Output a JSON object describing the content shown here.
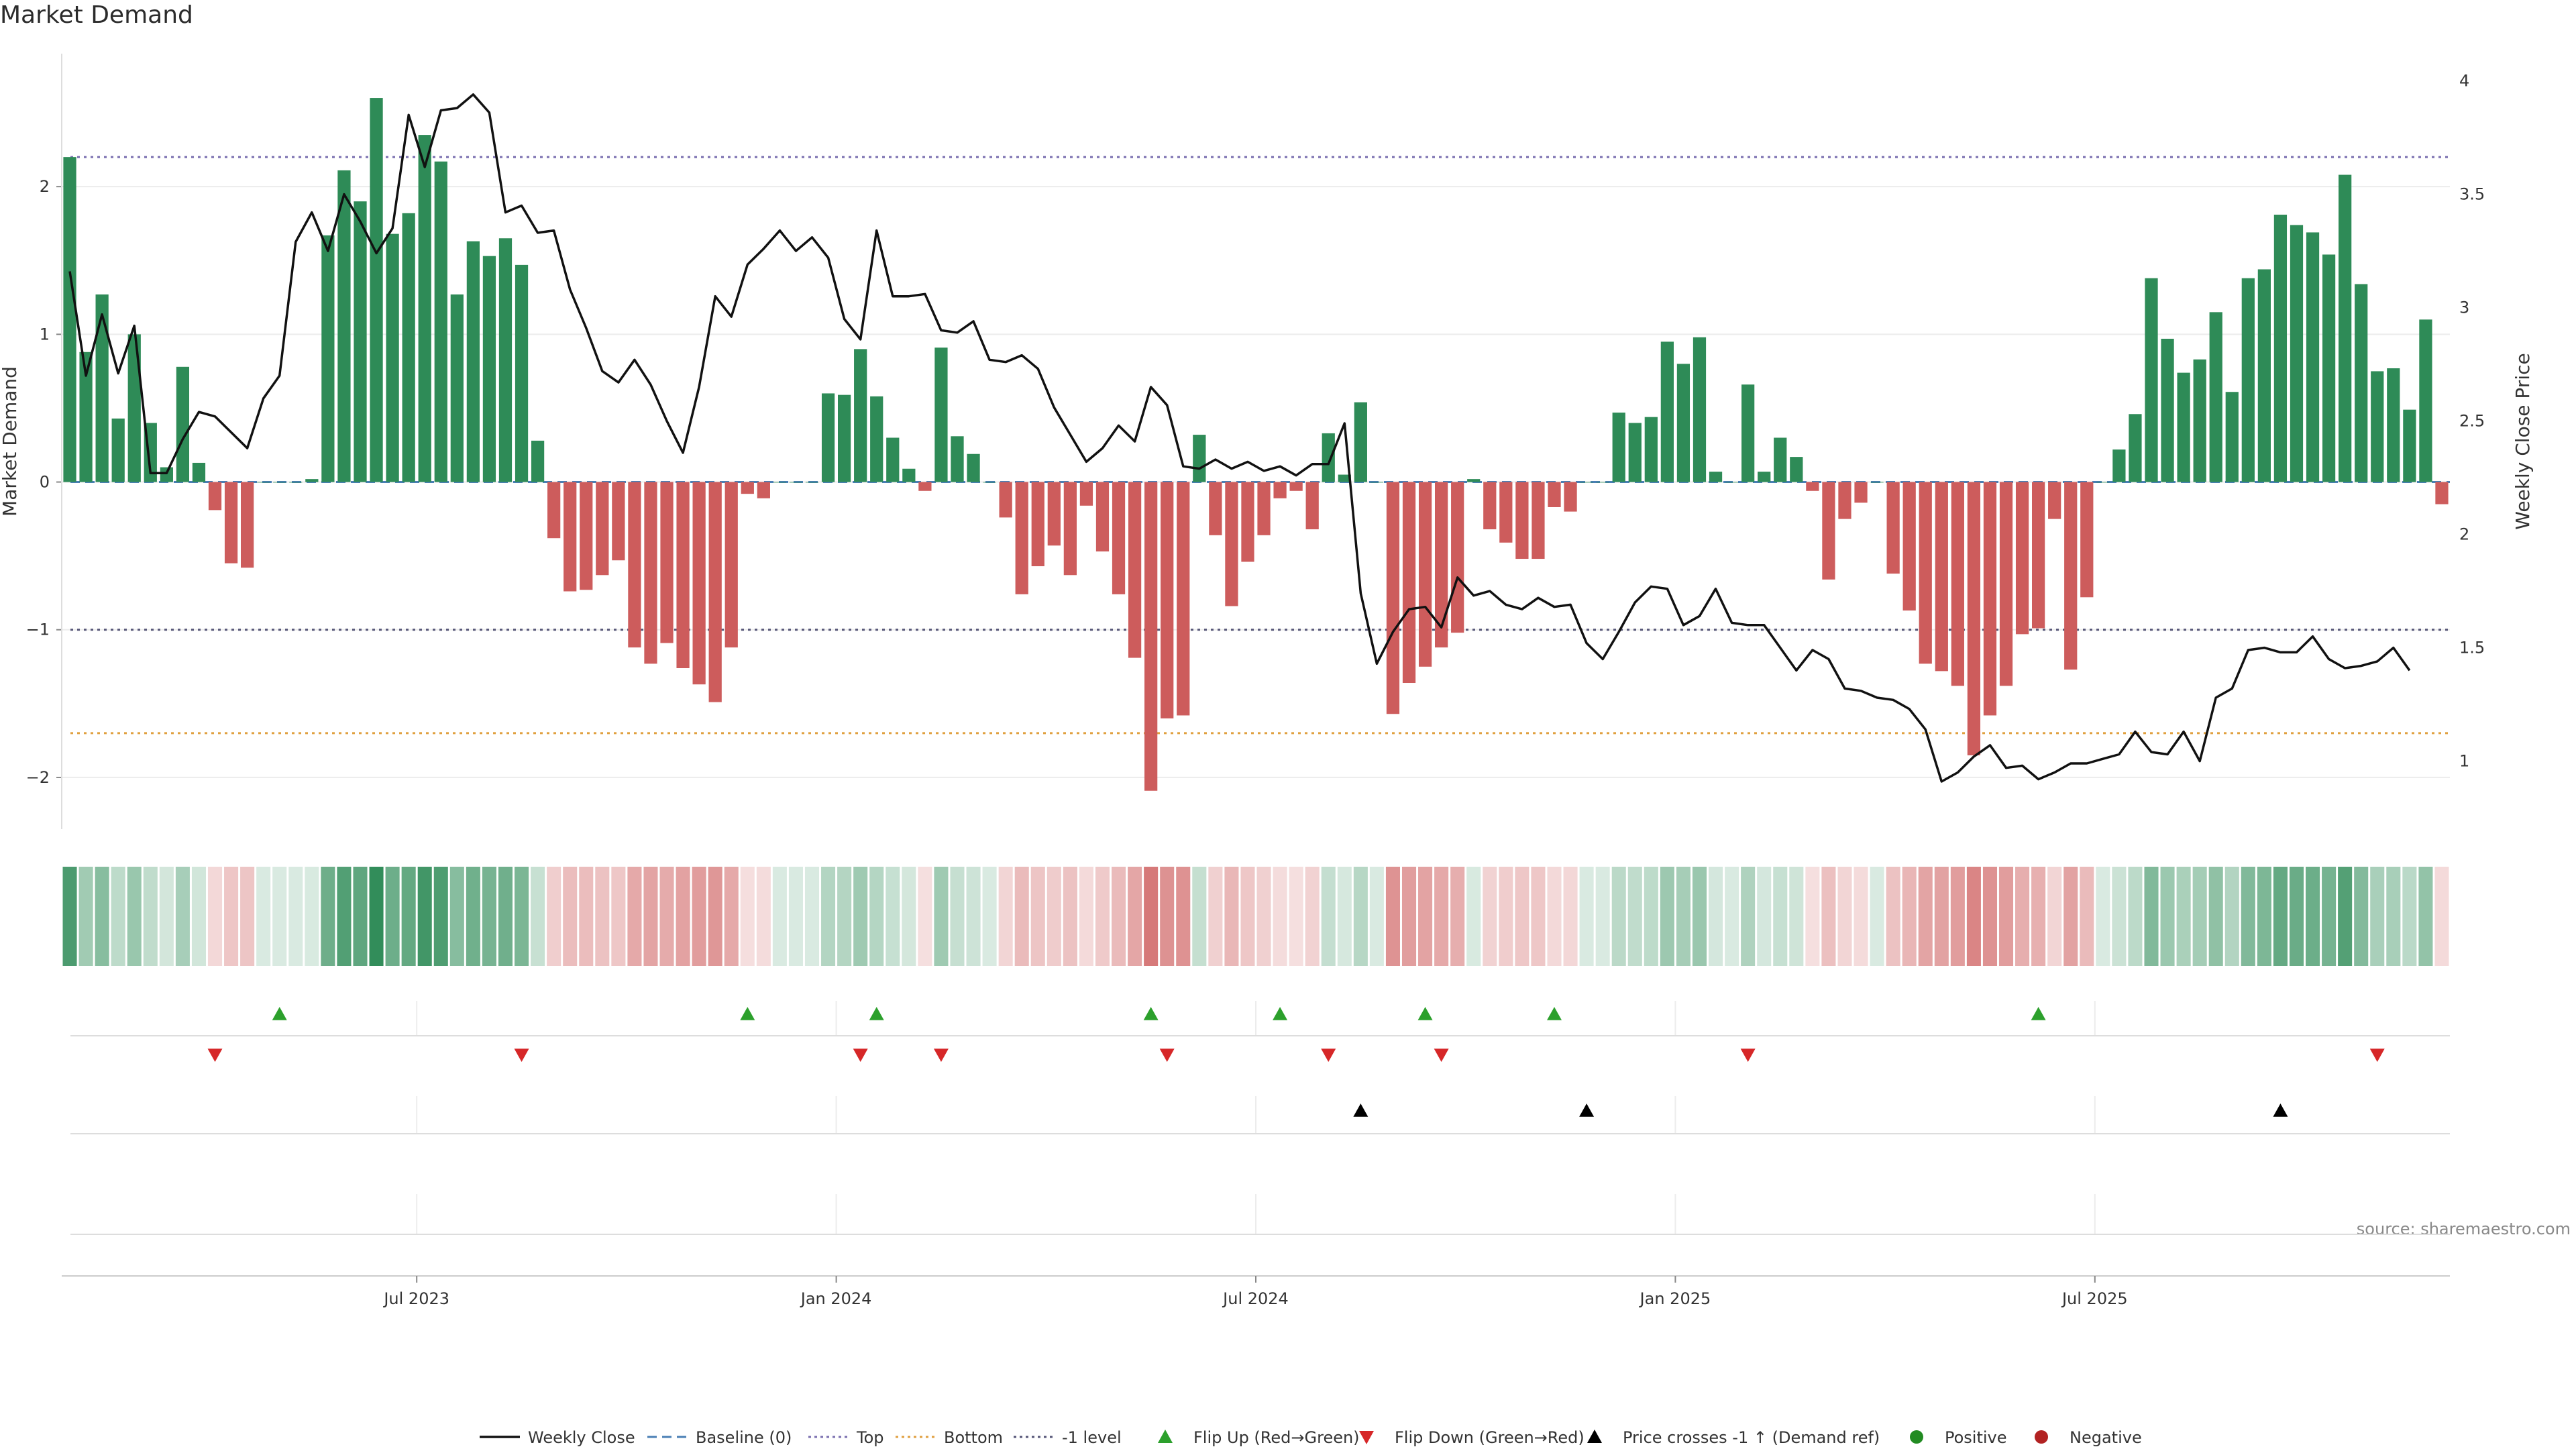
{
  "chart_data": {
    "type": "bar",
    "title": "Market Demand",
    "ylabel": "Market Demand",
    "y2label": "Weekly Close Price",
    "source": "source: sharemaestro.com",
    "ylim": [
      -2.35,
      2.9
    ],
    "y2lim": [
      0.7,
      4.12
    ],
    "yticks": [
      -2,
      -1,
      0,
      1,
      2
    ],
    "yticklabels": [
      "−2",
      "−1",
      "0",
      "1",
      "2"
    ],
    "y2ticks": [
      1,
      1.5,
      2,
      2.5,
      3,
      3.5,
      4
    ],
    "y2ticklabels": [
      "1",
      "1.5",
      "2",
      "2.5",
      "3",
      "3.5",
      "4"
    ],
    "xticks": [
      {
        "index": 22,
        "label": "Jul 2023"
      },
      {
        "index": 48,
        "label": "Jan 2024"
      },
      {
        "index": 74,
        "label": "Jul 2024"
      },
      {
        "index": 100,
        "label": "Jan 2025"
      },
      {
        "index": 126,
        "label": "Jul 2025"
      }
    ],
    "reference_lines": {
      "top": 2.2,
      "bottom": -1.7,
      "minus_one": -1.0
    },
    "colors": {
      "positive": "#2e8b57",
      "negative": "#cd5c5c",
      "price": "#111111",
      "top": "#7a6fb0",
      "bottom": "#e0a040",
      "minus_one": "#555577",
      "baseline": "#4a7fb5",
      "flip_up": "#2ca02c",
      "flip_down": "#d62728",
      "cross": "#000000"
    },
    "series": [
      {
        "name": "Market Demand",
        "values": [
          2.2,
          0.88,
          1.27,
          0.43,
          1.0,
          0.4,
          0.1,
          0.78,
          0.13,
          -0.19,
          -0.55,
          -0.58,
          0,
          0,
          0,
          0.02,
          1.67,
          2.11,
          1.9,
          2.6,
          1.68,
          1.82,
          2.35,
          2.17,
          1.27,
          1.63,
          1.53,
          1.65,
          1.47,
          0.28,
          -0.38,
          -0.74,
          -0.73,
          -0.63,
          -0.53,
          -1.12,
          -1.23,
          -1.09,
          -1.26,
          -1.37,
          -1.49,
          -1.12,
          -0.08,
          -0.11,
          0,
          0,
          0,
          0.6,
          0.59,
          0.9,
          0.58,
          0.3,
          0.09,
          -0.06,
          0.91,
          0.31,
          0.19,
          0,
          -0.24,
          -0.76,
          -0.57,
          -0.43,
          -0.63,
          -0.16,
          -0.47,
          -0.76,
          -1.19,
          -2.09,
          -1.6,
          -1.58,
          0.32,
          -0.36,
          -0.84,
          -0.54,
          -0.36,
          -0.11,
          -0.06,
          -0.32,
          0.33,
          0.05,
          0.54,
          0,
          -1.57,
          -1.36,
          -1.25,
          -1.12,
          -1.02,
          0.02,
          -0.32,
          -0.41,
          -0.52,
          -0.52,
          -0.17,
          -0.2,
          0,
          0,
          0.47,
          0.4,
          0.44,
          0.95,
          0.8,
          0.98,
          0.07,
          0,
          0.66,
          0.07,
          0.3,
          0.17,
          -0.06,
          -0.66,
          -0.25,
          -0.14,
          0,
          -0.62,
          -0.87,
          -1.23,
          -1.28,
          -1.38,
          -1.85,
          -1.58,
          -1.38,
          -1.03,
          -0.99,
          -0.25,
          -1.27,
          -0.78,
          0,
          0.22,
          0.46,
          1.38,
          0.97,
          0.74,
          0.83,
          1.15,
          0.61,
          1.38,
          1.44,
          1.81,
          1.74,
          1.69,
          1.54,
          2.08,
          1.34,
          0.75,
          0.77,
          0.49,
          1.1,
          -0.15
        ]
      },
      {
        "name": "Weekly Close",
        "values": [
          3.16,
          2.7,
          2.97,
          2.71,
          2.92,
          2.27,
          2.27,
          2.42,
          2.54,
          2.52,
          2.45,
          2.38,
          2.6,
          2.7,
          3.29,
          3.42,
          3.25,
          3.5,
          3.38,
          3.24,
          3.35,
          3.85,
          3.62,
          3.87,
          3.88,
          3.94,
          3.86,
          3.42,
          3.45,
          3.33,
          3.34,
          3.08,
          2.91,
          2.72,
          2.67,
          2.77,
          2.66,
          2.5,
          2.36,
          2.65,
          3.05,
          2.96,
          3.19,
          3.26,
          3.34,
          3.25,
          3.31,
          3.22,
          2.95,
          2.86,
          3.34,
          3.05,
          3.05,
          3.06,
          2.9,
          2.89,
          2.94,
          2.77,
          2.76,
          2.79,
          2.73,
          2.56,
          2.44,
          2.32,
          2.38,
          2.48,
          2.41,
          2.65,
          2.57,
          2.3,
          2.29,
          2.33,
          2.29,
          2.32,
          2.28,
          2.3,
          2.26,
          2.31,
          2.31,
          2.49,
          1.74,
          1.43,
          1.57,
          1.67,
          1.68,
          1.59,
          1.81,
          1.73,
          1.75,
          1.69,
          1.67,
          1.72,
          1.68,
          1.69,
          1.52,
          1.45,
          1.57,
          1.7,
          1.77,
          1.76,
          1.6,
          1.64,
          1.76,
          1.61,
          1.6,
          1.6,
          1.5,
          1.4,
          1.49,
          1.45,
          1.32,
          1.31,
          1.28,
          1.27,
          1.23,
          1.14,
          0.91,
          0.95,
          1.02,
          1.07,
          0.97,
          0.98,
          0.92,
          0.95,
          0.99,
          0.99,
          1.01,
          1.03,
          1.13,
          1.04,
          1.03,
          1.13,
          1.0,
          1.28,
          1.32,
          1.49,
          1.5,
          1.48,
          1.48,
          1.55,
          1.45,
          1.41,
          1.42,
          1.44,
          1.5,
          1.4
        ]
      }
    ],
    "events": {
      "flip_up": [
        13,
        42,
        50,
        67,
        75,
        84,
        92,
        122
      ],
      "flip_down": [
        9,
        28,
        49,
        54,
        68,
        78,
        85,
        104,
        143
      ],
      "price_cross": [
        80,
        94,
        137
      ]
    },
    "legend": [
      {
        "label": "Weekly Close",
        "kind": "line"
      },
      {
        "label": "Baseline (0)",
        "kind": "dash"
      },
      {
        "label": "Top",
        "kind": "dot-purple"
      },
      {
        "label": "Bottom",
        "kind": "dot-orange"
      },
      {
        "label": "-1 level",
        "kind": "dot-gray"
      },
      {
        "label": "Flip Up (Red→Green)",
        "kind": "tri-up-green"
      },
      {
        "label": "Flip Down (Green→Red)",
        "kind": "tri-down-red"
      },
      {
        "label": "Price crosses -1 ↑ (Demand ref)",
        "kind": "tri-up-black"
      },
      {
        "label": "Positive",
        "kind": "dot-green"
      },
      {
        "label": "Negative",
        "kind": "dot-red"
      }
    ],
    "legend_position": "bottom-center"
  }
}
